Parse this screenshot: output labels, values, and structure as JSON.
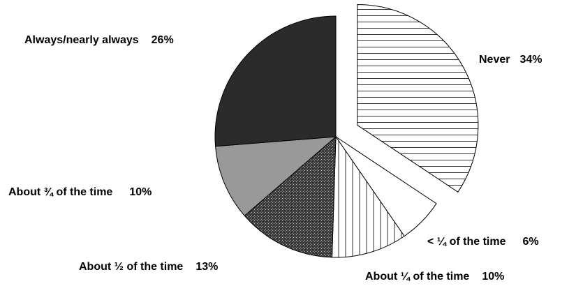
{
  "chart_data": {
    "type": "pie",
    "title": "",
    "slices": [
      {
        "label": "Never",
        "value": 34,
        "value_label": "34%",
        "fill": "hlines",
        "exploded": true
      },
      {
        "label": "< ¼ of the time",
        "value": 6,
        "value_label": "6%",
        "fill": "white",
        "exploded": false
      },
      {
        "label": "About ¼ of the time",
        "value": 10,
        "value_label": "10%",
        "fill": "vlines",
        "exploded": false
      },
      {
        "label": "About ½ of the time",
        "value": 13,
        "value_label": "13%",
        "fill": "dots",
        "exploded": false
      },
      {
        "label": "About ¾ of the time",
        "value": 10,
        "value_label": "10%",
        "fill": "gray",
        "exploded": false
      },
      {
        "label": "Always/nearly always",
        "value": 26,
        "value_label": "26%",
        "fill": "dark",
        "exploded": false
      }
    ],
    "colors": {
      "dark": "#2b2b2b",
      "gray": "#999999",
      "dots": "#4a4a4a",
      "white": "#ffffff",
      "lines": "#000000"
    }
  }
}
